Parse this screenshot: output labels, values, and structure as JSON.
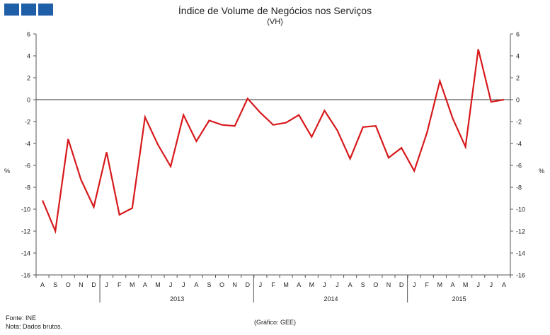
{
  "header": {
    "logo_blocks": 3,
    "brand_color": "#1f5fa8"
  },
  "chart_data": {
    "type": "line",
    "title": "Índice de Volume de Negócios nos Serviços",
    "subtitle": "(VH)",
    "ylabel_left": "%",
    "ylabel_right": "%",
    "ylim": [
      -16,
      6
    ],
    "yticks": [
      6,
      4,
      2,
      0,
      -2,
      -4,
      -6,
      -8,
      -10,
      -12,
      -14,
      -16
    ],
    "months": [
      "A",
      "S",
      "O",
      "N",
      "D",
      "J",
      "F",
      "M",
      "A",
      "M",
      "J",
      "J",
      "A",
      "S",
      "O",
      "N",
      "D",
      "J",
      "F",
      "M",
      "A",
      "M",
      "J",
      "J",
      "A",
      "S",
      "O",
      "N",
      "D",
      "J",
      "F",
      "M",
      "A",
      "M",
      "J",
      "J",
      "A"
    ],
    "years": [
      {
        "label": "2013",
        "start": 5,
        "end": 16
      },
      {
        "label": "2014",
        "start": 17,
        "end": 28
      },
      {
        "label": "2015",
        "start": 29,
        "end": 36
      }
    ],
    "series": [
      {
        "name": "VH",
        "color": "#d7191c",
        "values": [
          -9.2,
          -12.0,
          -3.6,
          -7.3,
          -9.8,
          -4.8,
          -10.5,
          -9.9,
          -1.6,
          -4.1,
          -6.1,
          -1.4,
          -3.8,
          -1.9,
          -2.3,
          -2.4,
          0.1,
          -1.2,
          -2.3,
          -2.1,
          -1.4,
          -3.4,
          -1.0,
          -2.8,
          -5.4,
          -2.5,
          -2.4,
          -5.3,
          -4.4,
          -6.5,
          -3.0,
          1.7,
          -1.7,
          -4.3,
          4.6,
          -0.2,
          0.0
        ]
      }
    ]
  },
  "footer": {
    "source": "Fonte: INE",
    "note": "Nota: Dados brutos.",
    "credit": "(Gráfico: GEE)"
  }
}
